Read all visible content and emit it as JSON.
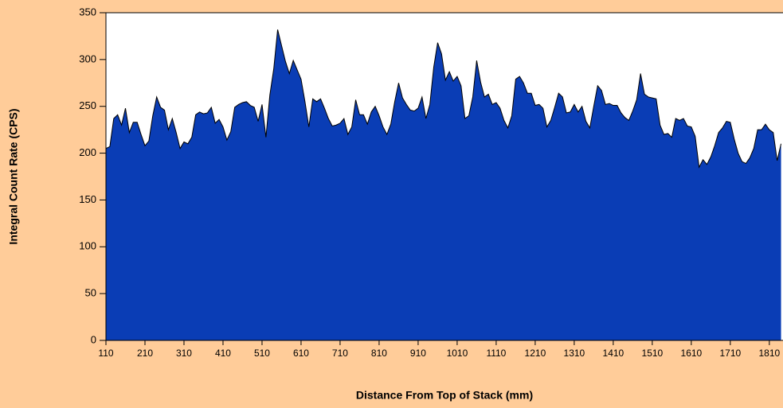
{
  "chart_data": {
    "type": "area",
    "xlabel": "Distance From Top of Stack (mm)",
    "ylabel": "Integral Count Rate (CPS)",
    "x": [
      110,
      120,
      130,
      140,
      150,
      160,
      170,
      180,
      190,
      200,
      210,
      220,
      230,
      240,
      250,
      260,
      270,
      280,
      290,
      300,
      310,
      320,
      330,
      340,
      350,
      360,
      370,
      380,
      390,
      400,
      410,
      420,
      430,
      440,
      450,
      460,
      470,
      480,
      490,
      500,
      510,
      520,
      530,
      540,
      550,
      560,
      570,
      580,
      590,
      600,
      610,
      620,
      630,
      640,
      650,
      660,
      670,
      680,
      690,
      700,
      710,
      720,
      730,
      740,
      750,
      760,
      770,
      780,
      790,
      800,
      810,
      820,
      830,
      840,
      850,
      860,
      870,
      880,
      890,
      900,
      910,
      920,
      930,
      940,
      950,
      960,
      970,
      980,
      990,
      1000,
      1010,
      1020,
      1030,
      1040,
      1050,
      1060,
      1070,
      1080,
      1090,
      1100,
      1110,
      1120,
      1130,
      1140,
      1150,
      1160,
      1170,
      1180,
      1190,
      1200,
      1210,
      1220,
      1230,
      1240,
      1250,
      1260,
      1270,
      1280,
      1290,
      1300,
      1310,
      1320,
      1330,
      1340,
      1350,
      1360,
      1370,
      1380,
      1390,
      1400,
      1410,
      1420,
      1430,
      1440,
      1450,
      1460,
      1470,
      1480,
      1490,
      1500,
      1510,
      1520,
      1530,
      1540,
      1550,
      1560,
      1570,
      1580,
      1590,
      1600,
      1610,
      1620,
      1630,
      1640,
      1650,
      1660,
      1670,
      1680,
      1690,
      1700,
      1710,
      1720,
      1730,
      1740,
      1750,
      1760,
      1770,
      1780,
      1790,
      1800,
      1810,
      1820,
      1830,
      1840
    ],
    "values": [
      205,
      207,
      237,
      241,
      230,
      248,
      222,
      233,
      233,
      220,
      208,
      213,
      240,
      260,
      249,
      246,
      225,
      237,
      222,
      205,
      212,
      210,
      217,
      241,
      244,
      242,
      243,
      249,
      232,
      236,
      228,
      214,
      223,
      249,
      252,
      254,
      255,
      251,
      249,
      234,
      252,
      217,
      262,
      290,
      332,
      315,
      298,
      285,
      299,
      289,
      279,
      255,
      228,
      258,
      255,
      258,
      248,
      237,
      229,
      230,
      232,
      237,
      220,
      228,
      257,
      241,
      241,
      231,
      244,
      250,
      240,
      228,
      220,
      231,
      255,
      275,
      259,
      252,
      246,
      245,
      248,
      260,
      237,
      252,
      292,
      318,
      306,
      278,
      287,
      277,
      282,
      272,
      237,
      240,
      260,
      299,
      276,
      260,
      263,
      252,
      254,
      248,
      235,
      227,
      240,
      279,
      282,
      275,
      264,
      264,
      251,
      252,
      248,
      228,
      235,
      249,
      264,
      260,
      243,
      244,
      252,
      244,
      250,
      234,
      227,
      250,
      272,
      267,
      252,
      253,
      251,
      251,
      243,
      238,
      235,
      245,
      257,
      285,
      263,
      260,
      259,
      258,
      230,
      220,
      221,
      217,
      237,
      235,
      237,
      229,
      228,
      218,
      185,
      193,
      188,
      196,
      208,
      222,
      227,
      234,
      233,
      215,
      200,
      191,
      189,
      195,
      205,
      225,
      225,
      231,
      225,
      222,
      192,
      210
    ],
    "color": "#0a3db5",
    "xlim": [
      110,
      1845
    ],
    "ylim": [
      0,
      350
    ],
    "xticks": [
      110,
      210,
      310,
      410,
      510,
      610,
      710,
      810,
      910,
      1010,
      1110,
      1210,
      1310,
      1410,
      1510,
      1610,
      1710,
      1810
    ],
    "yticks": [
      0,
      50,
      100,
      150,
      200,
      250,
      300,
      350
    ]
  }
}
